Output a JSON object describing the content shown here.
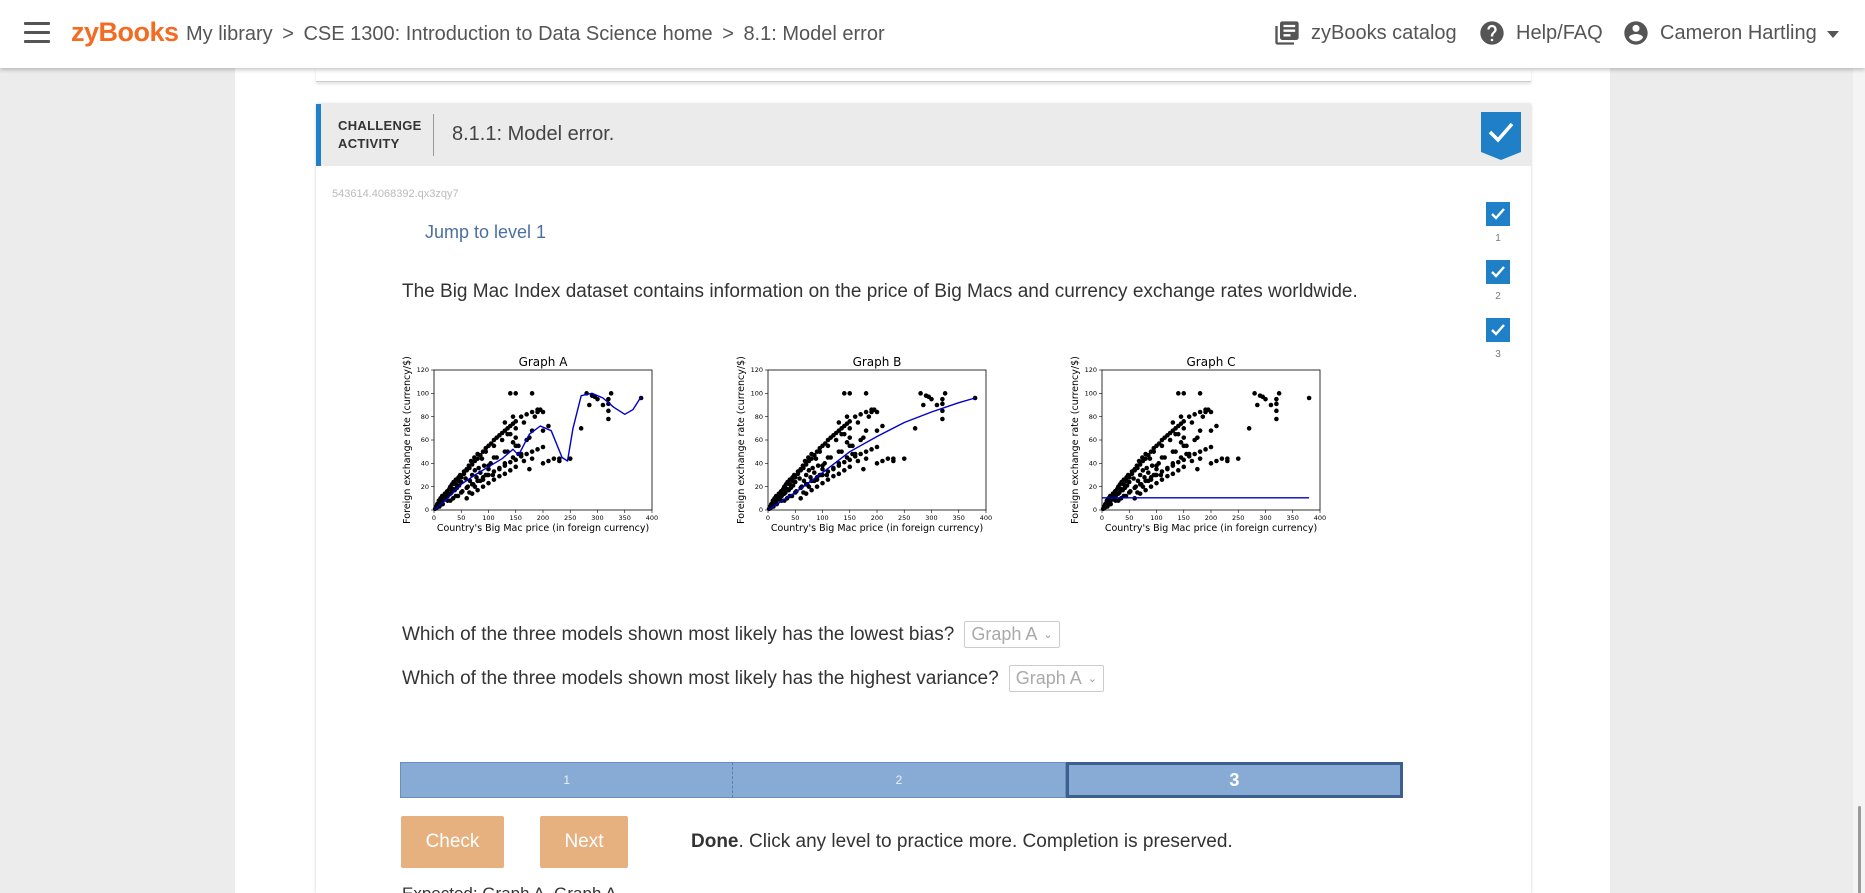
{
  "header": {
    "logo": "zyBooks",
    "breadcrumb": [
      "My library",
      "CSE 1300: Introduction to Data Science home",
      "8.1: Model error"
    ],
    "breadcrumb_sep": ">",
    "catalog_label": "zyBooks catalog",
    "help_label": "Help/FAQ",
    "user_name": "Cameron Hartling"
  },
  "activity": {
    "tag_line1": "CHALLENGE",
    "tag_line2": "ACTIVITY",
    "title": "8.1.1: Model error.",
    "id": "543614.4068392.qx3zqy7",
    "jump_link": "Jump to level 1",
    "prompt": "The Big Mac Index dataset contains information on the price of Big Macs and currency exchange rates worldwide.",
    "levels": [
      {
        "label": "1",
        "complete": true
      },
      {
        "label": "2",
        "complete": true
      },
      {
        "label": "3",
        "complete": true
      }
    ],
    "questions": [
      {
        "text": "Which of the three models shown most likely has the lowest bias?",
        "selected": "Graph A"
      },
      {
        "text": "Which of the three models shown most likely has the highest variance?",
        "selected": "Graph A"
      }
    ],
    "level_bar": [
      "1",
      "2",
      "3"
    ],
    "active_level": "3",
    "check_label": "Check",
    "next_label": "Next",
    "done_bold": "Done",
    "done_text": ". Click any level to practice more. Completion is preserved.",
    "expected_text": "Expected: Graph A, Graph A"
  },
  "colors": {
    "brand": "#f36c21",
    "accent": "#1f80c8",
    "button": "#e6b07f",
    "level_bar": "#88abd6",
    "model_line": "#0000cc"
  },
  "icons": {
    "menu": "hamburger-icon",
    "catalog": "library-books-icon",
    "help": "help-circle-icon",
    "user": "account-circle-icon",
    "dropdown": "caret-down-icon",
    "check": "checkmark-icon"
  },
  "chart_data": [
    {
      "type": "scatter",
      "title": "Graph A",
      "xlabel": "Country's Big Mac price (in foreign currency)",
      "ylabel": "Foreign exchange rate (currency/$)",
      "xlim": [
        0,
        400
      ],
      "ylim": [
        0,
        120
      ],
      "xticks": [
        0,
        50,
        100,
        150,
        200,
        250,
        300,
        350,
        400
      ],
      "yticks": [
        0,
        20,
        40,
        60,
        80,
        100,
        120
      ],
      "model": "high-variance wiggly fit",
      "fit_line": {
        "x": [
          0,
          25,
          50,
          75,
          100,
          125,
          145,
          155,
          175,
          195,
          215,
          235,
          245,
          255,
          270,
          290,
          310,
          330,
          350,
          365,
          380
        ],
        "y": [
          0,
          10,
          22,
          30,
          37,
          44,
          52,
          47,
          65,
          72,
          68,
          45,
          42,
          70,
          98,
          100,
          96,
          88,
          82,
          86,
          97
        ]
      }
    },
    {
      "type": "scatter",
      "title": "Graph B",
      "xlabel": "Country's Big Mac price (in foreign currency)",
      "ylabel": "Foreign exchange rate (currency/$)",
      "xlim": [
        0,
        400
      ],
      "ylim": [
        0,
        120
      ],
      "xticks": [
        0,
        50,
        100,
        150,
        200,
        250,
        300,
        350,
        400
      ],
      "yticks": [
        0,
        20,
        40,
        60,
        80,
        100,
        120
      ],
      "model": "smooth curve fit",
      "fit_line": {
        "x": [
          0,
          50,
          100,
          150,
          200,
          250,
          300,
          350,
          380
        ],
        "y": [
          0,
          15,
          32,
          50,
          63,
          75,
          84,
          92,
          96
        ]
      }
    },
    {
      "type": "scatter",
      "title": "Graph C",
      "xlabel": "Country's Big Mac price (in foreign currency)",
      "ylabel": "Foreign exchange rate (currency/$)",
      "xlim": [
        0,
        400
      ],
      "ylim": [
        0,
        120
      ],
      "xticks": [
        0,
        50,
        100,
        150,
        200,
        250,
        300,
        350,
        400
      ],
      "yticks": [
        0,
        20,
        40,
        60,
        80,
        100,
        120
      ],
      "model": "constant (flat) fit",
      "fit_line": {
        "x": [
          0,
          380
        ],
        "y": [
          10.5,
          10.5
        ]
      }
    }
  ],
  "scatter_points": {
    "x": [
      2,
      4,
      5,
      6,
      7,
      8,
      9,
      10,
      12,
      14,
      15,
      16,
      18,
      20,
      22,
      24,
      25,
      26,
      28,
      30,
      32,
      33,
      35,
      36,
      38,
      40,
      42,
      44,
      45,
      46,
      48,
      50,
      52,
      55,
      58,
      60,
      62,
      64,
      66,
      68,
      70,
      72,
      74,
      75,
      78,
      80,
      82,
      85,
      88,
      90,
      92,
      95,
      98,
      100,
      104,
      108,
      110,
      115,
      120,
      125,
      130,
      135,
      140,
      145,
      150,
      155,
      160,
      165,
      170,
      175,
      180,
      185,
      190,
      195,
      200,
      210,
      220,
      230,
      250,
      270,
      280,
      290,
      300,
      310,
      320,
      380,
      10,
      15,
      20,
      25,
      30,
      35,
      40,
      45,
      50,
      55,
      60,
      65,
      70,
      75,
      80,
      85,
      90,
      95,
      100,
      105,
      110,
      115,
      120,
      125,
      130,
      135,
      140,
      145,
      150,
      160,
      170,
      180,
      190,
      200,
      30,
      40,
      50,
      60,
      70,
      80,
      90,
      100,
      110,
      120,
      130,
      140,
      150,
      160,
      170,
      180,
      190,
      200,
      60,
      70,
      80,
      90,
      100,
      110,
      120,
      130,
      140,
      150,
      145,
      150,
      180,
      200,
      210,
      230,
      180,
      140,
      150,
      320,
      320,
      320,
      325,
      295,
      285,
      130,
      135,
      145,
      150,
      155,
      165,
      175,
      130,
      110,
      100,
      95,
      85,
      75,
      65
    ],
    "y": [
      1,
      3,
      2,
      5,
      4,
      6,
      8,
      3,
      10,
      7,
      12,
      5,
      9,
      14,
      11,
      16,
      8,
      13,
      18,
      20,
      15,
      22,
      10,
      24,
      17,
      26,
      19,
      12,
      28,
      21,
      30,
      24,
      16,
      33,
      27,
      35,
      20,
      38,
      25,
      42,
      30,
      22,
      45,
      34,
      28,
      48,
      36,
      32,
      44,
      26,
      38,
      50,
      30,
      35,
      40,
      30,
      55,
      45,
      35,
      60,
      40,
      50,
      65,
      45,
      70,
      55,
      48,
      75,
      60,
      62,
      68,
      80,
      84,
      86,
      68,
      72,
      44,
      42,
      44,
      70,
      100,
      98,
      95,
      90,
      78,
      96,
      4,
      6,
      9,
      12,
      14,
      18,
      22,
      25,
      28,
      31,
      34,
      36,
      39,
      42,
      44,
      47,
      50,
      53,
      55,
      57,
      60,
      62,
      64,
      66,
      68,
      70,
      72,
      74,
      76,
      80,
      82,
      84,
      86,
      40,
      8,
      12,
      15,
      19,
      22,
      25,
      28,
      30,
      33,
      36,
      38,
      41,
      43,
      46,
      48,
      50,
      52,
      54,
      10,
      14,
      17,
      20,
      23,
      26,
      29,
      31,
      34,
      37,
      58,
      62,
      100,
      84,
      42,
      44,
      44,
      100,
      100,
      95,
      91,
      85,
      100,
      97,
      90,
      75,
      65,
      80,
      55,
      48,
      42,
      35,
      50,
      45,
      38,
      30,
      25,
      20,
      15
    ]
  }
}
